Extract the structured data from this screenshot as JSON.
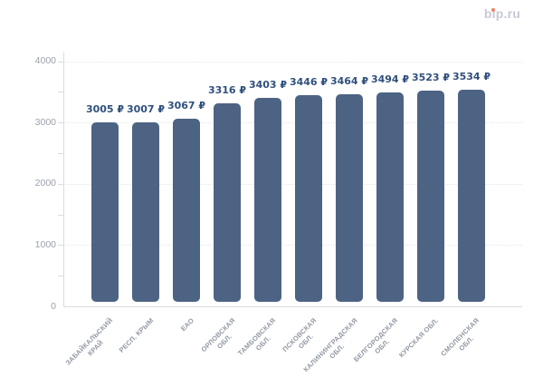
{
  "logo": {
    "text": "bip.ru",
    "color": "#c6cad6",
    "dot_color": "#ef8465"
  },
  "chart_data": {
    "type": "bar",
    "title": "",
    "categories": [
      "ЗАБАЙКАЛЬСКИЙ КРАЙ",
      "РЕСП. КРЫМ",
      "ЕАО",
      "ОРЛОВСКАЯ ОБЛ.",
      "ТАМБОВСКАЯ ОБЛ.",
      "ПСКОВСКАЯ ОБЛ.",
      "КАЛИНИНГРАДСКАЯ ОБЛ.",
      "БЕЛГОРОДСКАЯ ОБЛ.",
      "КУРСКАЯ ОБЛ.",
      "СМОЛЕНСКАЯ ОБЛ."
    ],
    "category_lines": [
      [
        "ЗАБАЙКАЛЬСКИЙ",
        "КРАЙ"
      ],
      [
        "РЕСП. КРЫМ"
      ],
      [
        "ЕАО"
      ],
      [
        "ОРЛОВСКАЯ",
        "ОБЛ."
      ],
      [
        "ТАМБОВСКАЯ",
        "ОБЛ."
      ],
      [
        "ПСКОВСКАЯ",
        "ОБЛ."
      ],
      [
        "КАЛИНИНГРАДСКАЯ",
        "ОБЛ."
      ],
      [
        "БЕЛГОРОДСКАЯ",
        "ОБЛ."
      ],
      [
        "КУРСКАЯ ОБЛ."
      ],
      [
        "СМОЛЕНСКАЯ",
        "ОБЛ."
      ]
    ],
    "values": [
      3005,
      3007,
      3067,
      3316,
      3403,
      3446,
      3464,
      3494,
      3523,
      3534
    ],
    "value_suffix": "₽",
    "value_labels": [
      "3005 ₽",
      "3007 ₽",
      "3067 ₽",
      "3316 ₽",
      "3403 ₽",
      "3446 ₽",
      "3464 ₽",
      "3494 ₽",
      "3523 ₽",
      "3534 ₽"
    ],
    "xlabel": "",
    "ylabel": "",
    "ylim": [
      0,
      4000
    ],
    "y_tick_labels": [
      "0",
      "1000",
      "2000",
      "3000",
      "4000"
    ],
    "y_ticks_labeled": [
      0,
      1000,
      2000,
      3000,
      4000
    ],
    "y_minor_tick_step": 500,
    "grid": "horizontal dotted at 1000 intervals",
    "legend_position": "none",
    "bar_color": "#4d6384",
    "value_label_color": "#30507d",
    "axis_label_color": "#9ba1ac"
  }
}
